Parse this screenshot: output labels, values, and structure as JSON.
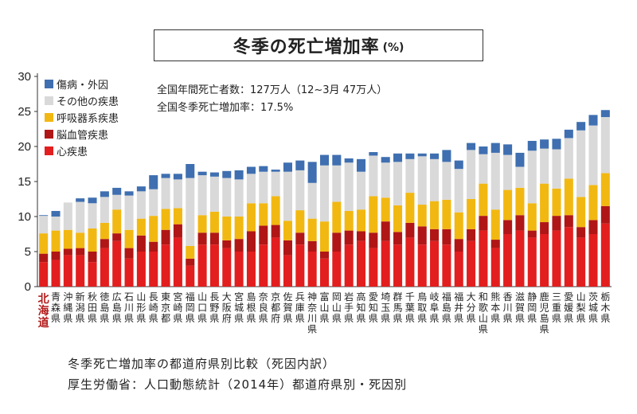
{
  "title": "冬季の死亡増加率",
  "title_unit": "(%)",
  "annotations": [
    "全国年間死亡者数：127万人（12~3月 47万人）",
    "全国冬季死亡増加率：17.5%"
  ],
  "captions": [
    "冬季死亡増加率の都道府県別比較（死因内訳）",
    "厚生労働省：人口動態統計（2014年）都道府県別・死因別"
  ],
  "colors": {
    "傷病・外因": "#3f6fb0",
    "その他の疾患": "#d9d9d9",
    "呼吸器系疾患": "#f2b812",
    "脳血管疾患": "#b01616",
    "心疾患": "#e31e1e",
    "highlight": "#b31b1b"
  },
  "chart_data": {
    "type": "bar",
    "stacked": true,
    "ylim": [
      0,
      30
    ],
    "yticks": [
      0,
      5,
      10,
      15,
      20,
      25,
      30
    ],
    "legend_position": "top-left",
    "legend": [
      "傷病・外因",
      "その他の疾患",
      "呼吸器系疾患",
      "脳血管疾患",
      "心疾患"
    ],
    "highlight_category": "北海道",
    "categories": [
      "北海道",
      "青森県",
      "沖縄県",
      "新潟県",
      "秋田県",
      "徳島県",
      "広島県",
      "石川県",
      "山形県",
      "長崎県",
      "東京都",
      "宮崎県",
      "福岡県",
      "山口県",
      "長野県",
      "大阪府",
      "宮城県",
      "島根県",
      "奈良県",
      "京都府",
      "佐賀県",
      "兵庫県",
      "神奈川県",
      "富山県",
      "岡山県",
      "岩手県",
      "高知県",
      "愛知県",
      "埼玉県",
      "群馬県",
      "千葉県",
      "鳥取県",
      "岐阜県",
      "福島県",
      "福井県",
      "大分県",
      "和歌山県",
      "熊本県",
      "香川県",
      "滋賀県",
      "静岡県",
      "鹿児島県",
      "三重県",
      "愛媛県",
      "山梨県",
      "茨城県",
      "栃木県"
    ],
    "series": [
      {
        "name": "心疾患",
        "values": [
          3.5,
          3.8,
          4.5,
          4.5,
          3.5,
          5.5,
          6.5,
          4.0,
          5.0,
          5.0,
          6.0,
          7.0,
          3.0,
          6.0,
          6.0,
          5.5,
          5.0,
          5.0,
          6.0,
          7.0,
          4.5,
          6.0,
          5.0,
          4.0,
          5.0,
          6.0,
          6.5,
          5.5,
          6.5,
          6.0,
          7.0,
          6.0,
          6.5,
          6.0,
          5.0,
          6.5,
          8.0,
          5.5,
          7.5,
          8.0,
          7.0,
          7.5,
          8.0,
          8.5,
          7.0,
          7.5,
          9.0
        ]
      },
      {
        "name": "脳血管疾患",
        "values": [
          1.2,
          1.2,
          0.9,
          1.0,
          1.5,
          1.3,
          1.1,
          1.5,
          2.3,
          1.4,
          2.1,
          1.9,
          1.0,
          1.7,
          1.7,
          1.1,
          1.8,
          2.9,
          2.7,
          1.8,
          2.1,
          1.7,
          1.5,
          1.0,
          2.7,
          2.0,
          1.4,
          2.2,
          2.8,
          1.8,
          2.1,
          2.6,
          1.7,
          2.2,
          1.8,
          1.7,
          2.1,
          1.2,
          2.0,
          2.2,
          1.0,
          1.7,
          2.1,
          1.7,
          1.5,
          2.0,
          2.5
        ]
      },
      {
        "name": "呼吸器系疾患",
        "values": [
          2.9,
          3.0,
          2.7,
          2.2,
          3.3,
          2.3,
          3.4,
          2.6,
          2.4,
          3.7,
          3.0,
          2.3,
          1.8,
          2.5,
          3.0,
          3.4,
          3.2,
          4.0,
          3.2,
          4.1,
          2.8,
          3.2,
          3.2,
          4.3,
          4.4,
          2.8,
          3.1,
          5.2,
          3.4,
          3.8,
          4.3,
          3.1,
          4.0,
          4.2,
          3.8,
          4.3,
          4.6,
          4.3,
          4.3,
          3.9,
          3.9,
          5.5,
          3.9,
          5.2,
          4.3,
          5.0,
          4.7
        ]
      },
      {
        "name": "その他の疾患",
        "values": [
          2.5,
          2.0,
          3.9,
          4.4,
          3.6,
          3.7,
          2.1,
          4.9,
          3.9,
          3.8,
          4.4,
          4.1,
          9.7,
          5.7,
          5.0,
          5.5,
          5.3,
          4.2,
          4.5,
          3.5,
          7.0,
          5.7,
          5.1,
          8.0,
          5.2,
          6.9,
          5.4,
          5.8,
          5.0,
          6.2,
          4.8,
          6.9,
          6.0,
          5.4,
          6.2,
          7.0,
          4.2,
          8.1,
          5.0,
          3.0,
          7.5,
          5.0,
          5.6,
          5.8,
          9.5,
          8.5,
          8.0
        ]
      },
      {
        "name": "傷病・外因",
        "values": [
          0.1,
          0.8,
          0.0,
          0.5,
          0.8,
          0.8,
          1.0,
          0.6,
          0.7,
          2.0,
          0.6,
          0.8,
          2.0,
          0.5,
          0.6,
          1.0,
          1.3,
          1.0,
          0.8,
          0.3,
          1.3,
          1.4,
          3.0,
          1.5,
          1.5,
          0.6,
          1.8,
          0.5,
          0.8,
          1.2,
          0.8,
          0.4,
          0.8,
          1.7,
          1.2,
          1.0,
          1.1,
          1.4,
          1.5,
          2.0,
          1.4,
          1.3,
          1.5,
          1.2,
          1.2,
          1.5,
          1.0
        ]
      }
    ]
  }
}
